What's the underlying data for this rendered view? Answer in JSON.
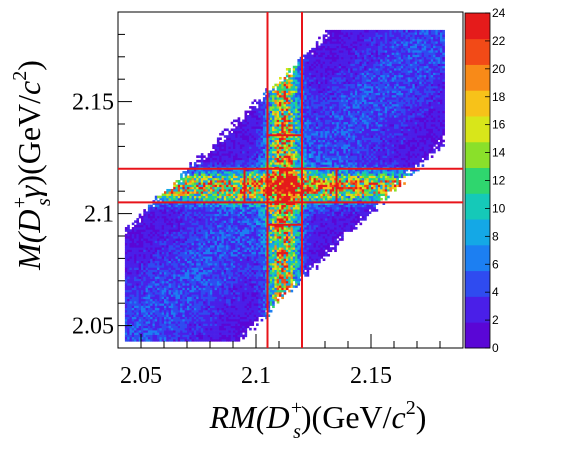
{
  "chart_data": {
    "type": "heatmap",
    "xlabel": {
      "main": "RM(D",
      "sup": "+",
      "sub": "s",
      "close": ")",
      "unit_pre": "(GeV/",
      "unit_var": "c",
      "unit_sup": "2",
      "unit_post": ")"
    },
    "ylabel": {
      "main": "M(D",
      "sup": "+",
      "sub": "s",
      "gamma": "γ",
      "close": ")",
      "unit_pre": "(GeV/",
      "unit_var": "c",
      "unit_sup": "2",
      "unit_post": ")"
    },
    "xlim": [
      2.04,
      2.19
    ],
    "ylim": [
      2.04,
      2.19
    ],
    "x_ticks": [
      2.05,
      2.1,
      2.15
    ],
    "x_tick_labels": [
      "2.05",
      "2.1",
      "2.15"
    ],
    "y_ticks": [
      2.05,
      2.1,
      2.15
    ],
    "y_tick_labels": [
      "2.05",
      "2.1",
      "2.15"
    ],
    "z_range": [
      0,
      24
    ],
    "z_ticks": [
      0,
      2,
      4,
      6,
      8,
      10,
      12,
      14,
      16,
      18,
      20,
      22,
      24
    ],
    "z_tick_labels": [
      "0",
      "2",
      "4",
      "6",
      "8",
      "10",
      "12",
      "14",
      "16",
      "18",
      "20",
      "22",
      "24"
    ],
    "signal_band_x": [
      2.105,
      2.12
    ],
    "signal_band_y": [
      2.105,
      2.12
    ],
    "sideband_x_low": [
      2.04,
      2.095
    ],
    "sideband_x_high": [
      2.135,
      2.19
    ],
    "sideband_y_low": [
      2.04,
      2.095
    ],
    "sideband_y_high": [
      2.135,
      2.19
    ],
    "distribution": {
      "region_band": "diagonal",
      "cross_center": [
        2.112,
        2.112
      ],
      "peak_value": 24,
      "background_level": 1.5
    },
    "colors": {
      "box_lines": "#e8141a",
      "palette": [
        "#5a06d6",
        "#4a1fe8",
        "#2f4bf0",
        "#1c7ff2",
        "#14a8e6",
        "#15c9b8",
        "#2fd66e",
        "#8ae02a",
        "#d8e61a",
        "#f7c219",
        "#f88a18",
        "#f24a17",
        "#e51b1b"
      ]
    }
  }
}
